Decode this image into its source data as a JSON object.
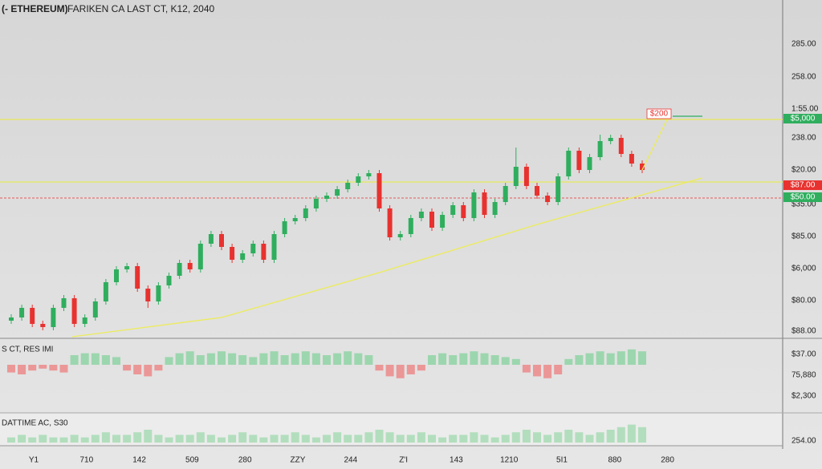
{
  "header": {
    "symbol": "(- ETHEREUM)",
    "title": "FARIKEN CA LAST CT, K12, 2040"
  },
  "chart_data": {
    "type": "candlestick",
    "colors": {
      "up": "#2fae5e",
      "down": "#e8322f"
    },
    "ylim": [
      0,
      100
    ],
    "open": [
      5,
      6,
      9,
      4,
      3,
      9,
      12,
      4,
      6,
      11,
      17,
      21,
      22,
      15,
      11,
      16,
      19,
      23,
      21,
      29,
      32,
      28,
      24,
      26,
      29,
      24,
      32,
      36,
      37,
      40,
      43,
      44,
      46,
      48,
      50,
      51,
      40,
      31,
      32,
      37,
      39,
      34,
      38,
      41,
      37,
      45,
      38,
      42,
      47,
      53,
      47,
      44,
      42,
      50,
      58,
      52,
      56,
      61,
      62,
      57,
      54
    ],
    "high": [
      7,
      10,
      10,
      5,
      10,
      13,
      13,
      7,
      12,
      18,
      22,
      23,
      23,
      16,
      17,
      20,
      24,
      24,
      30,
      33,
      33,
      29,
      27,
      30,
      30,
      33,
      37,
      38,
      41,
      44,
      45,
      47,
      49,
      51,
      52,
      52,
      41,
      33,
      38,
      40,
      40,
      39,
      42,
      42,
      46,
      46,
      43,
      48,
      59,
      54,
      48,
      45,
      51,
      59,
      59,
      57,
      63,
      63,
      63,
      58,
      55
    ],
    "low": [
      4,
      5,
      3,
      2,
      2,
      8,
      3,
      3,
      5,
      10,
      16,
      20,
      14,
      9,
      10,
      15,
      18,
      20,
      20,
      28,
      27,
      23,
      23,
      25,
      23,
      23,
      31,
      35,
      36,
      39,
      42,
      43,
      45,
      47,
      49,
      39,
      30,
      30,
      31,
      36,
      33,
      33,
      37,
      36,
      36,
      37,
      37,
      41,
      46,
      46,
      43,
      41,
      41,
      49,
      51,
      51,
      55,
      60,
      56,
      53,
      51
    ],
    "close": [
      6,
      9,
      4,
      3,
      9,
      12,
      4,
      6,
      11,
      17,
      21,
      22,
      15,
      11,
      16,
      19,
      23,
      21,
      29,
      32,
      28,
      24,
      26,
      29,
      24,
      32,
      36,
      37,
      40,
      43,
      44,
      46,
      48,
      50,
      51,
      40,
      31,
      32,
      37,
      39,
      34,
      38,
      41,
      37,
      45,
      38,
      42,
      47,
      53,
      47,
      44,
      42,
      50,
      58,
      52,
      56,
      61,
      62,
      57,
      54,
      52
    ],
    "levels": [
      {
        "value": 67.75,
        "color": "#e6e85a"
      },
      {
        "value": 48.25,
        "color": "#e6e85a"
      },
      {
        "value": 43.25,
        "color": "#e57373"
      }
    ],
    "trendline": {
      "x": [
        5.8,
        20,
        35,
        50,
        65.7
      ],
      "values": [
        0,
        6,
        20,
        35,
        49.5
      ],
      "color": "#ecec5a"
    },
    "price_labels": [
      "285.00",
      "258.00",
      "1:55.00",
      "238.00",
      "$20.00",
      "$35.00",
      "$85.00",
      "$6,000",
      "$80.00",
      "$88.00"
    ],
    "price_tags": [
      {
        "label": "$5,000",
        "color": "#2fae5e"
      },
      {
        "label": "$87.00",
        "color": "#e8322f"
      },
      {
        "label": "$50.00",
        "color": "#2fae5e"
      }
    ],
    "annotation": "$200",
    "x_labels": [
      "Y1",
      "710",
      "142",
      "509",
      "280",
      "ZZY",
      "244",
      "Z'I",
      "143",
      "1210",
      "5I1",
      "880",
      "280"
    ],
    "panels": [
      {
        "label": "S CT, RES IMI",
        "ylim": [
          -10,
          10
        ],
        "axis_labels": [
          "$37.00",
          "75,880",
          "$2,300"
        ],
        "values": [
          -4,
          -5,
          -3,
          -2,
          -3,
          -4,
          5,
          6,
          6,
          5,
          4,
          -3,
          -5,
          -6,
          -3,
          4,
          6,
          7,
          5,
          6,
          7,
          6,
          5,
          4,
          6,
          7,
          5,
          6,
          7,
          6,
          5,
          6,
          7,
          6,
          5,
          -3,
          -6,
          -7,
          -5,
          -3,
          5,
          6,
          5,
          6,
          7,
          6,
          5,
          4,
          3,
          -4,
          -6,
          -7,
          -5,
          3,
          5,
          6,
          7,
          6,
          7,
          8,
          7
        ]
      },
      {
        "label": "DATTIME AC, S30",
        "ylim": [
          0,
          10
        ],
        "axis_labels": [
          "254.00"
        ],
        "values": [
          2,
          3,
          2,
          3,
          2,
          2,
          3,
          2,
          3,
          4,
          3,
          3,
          4,
          5,
          3,
          2,
          3,
          3,
          4,
          3,
          2,
          3,
          4,
          3,
          2,
          3,
          3,
          4,
          3,
          2,
          3,
          4,
          3,
          3,
          4,
          5,
          4,
          3,
          3,
          4,
          3,
          2,
          3,
          3,
          4,
          3,
          2,
          3,
          4,
          5,
          4,
          3,
          4,
          5,
          4,
          3,
          4,
          5,
          6,
          7,
          6
        ]
      }
    ]
  }
}
